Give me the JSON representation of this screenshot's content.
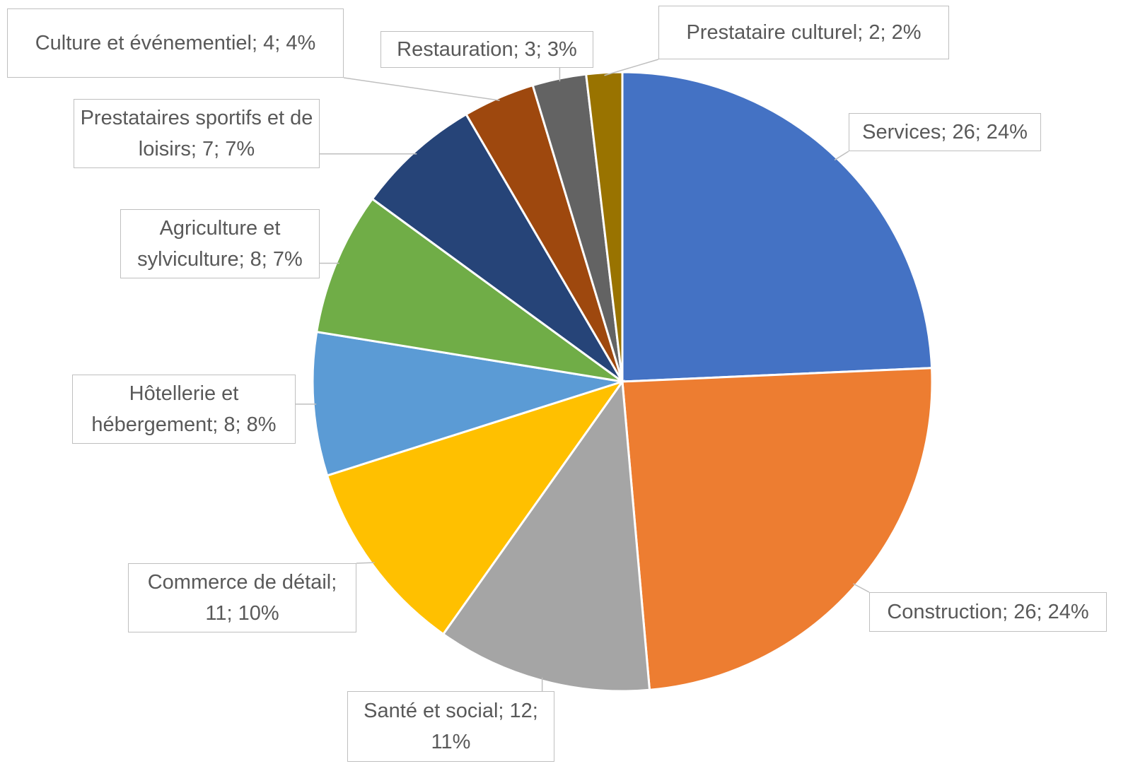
{
  "chart_data": {
    "type": "pie",
    "categories": [
      "Services",
      "Construction",
      "Santé et social",
      "Commerce de détail",
      "Hôtellerie  et hébergement",
      "Agriculture et sylviculture",
      "Prestataires sportifs et de loisirs",
      "Culture et événementiel",
      "Restauration",
      "Prestataire culturel"
    ],
    "values": [
      26,
      26,
      12,
      11,
      8,
      8,
      7,
      4,
      3,
      2
    ],
    "value_labels": [
      "Services; 26; 24%",
      "Construction; 26; 24%",
      "Santé et social; 12; 11%",
      "Commerce de détail; 11; 10%",
      "Hôtellerie  et hébergement; 8; 8%",
      "Agriculture et sylviculture; 8; 7%",
      "Prestataires sportifs et de loisirs; 7; 7%",
      "Culture et événementiel; 4; 4%",
      "Restauration; 3; 3%",
      "Prestataire culturel; 2; 2%"
    ],
    "colors": [
      "#4472c4",
      "#ed7d31",
      "#a5a5a5",
      "#ffc000",
      "#5b9bd5",
      "#70ad47",
      "#264478",
      "#9e480e",
      "#636363",
      "#997300"
    ]
  }
}
